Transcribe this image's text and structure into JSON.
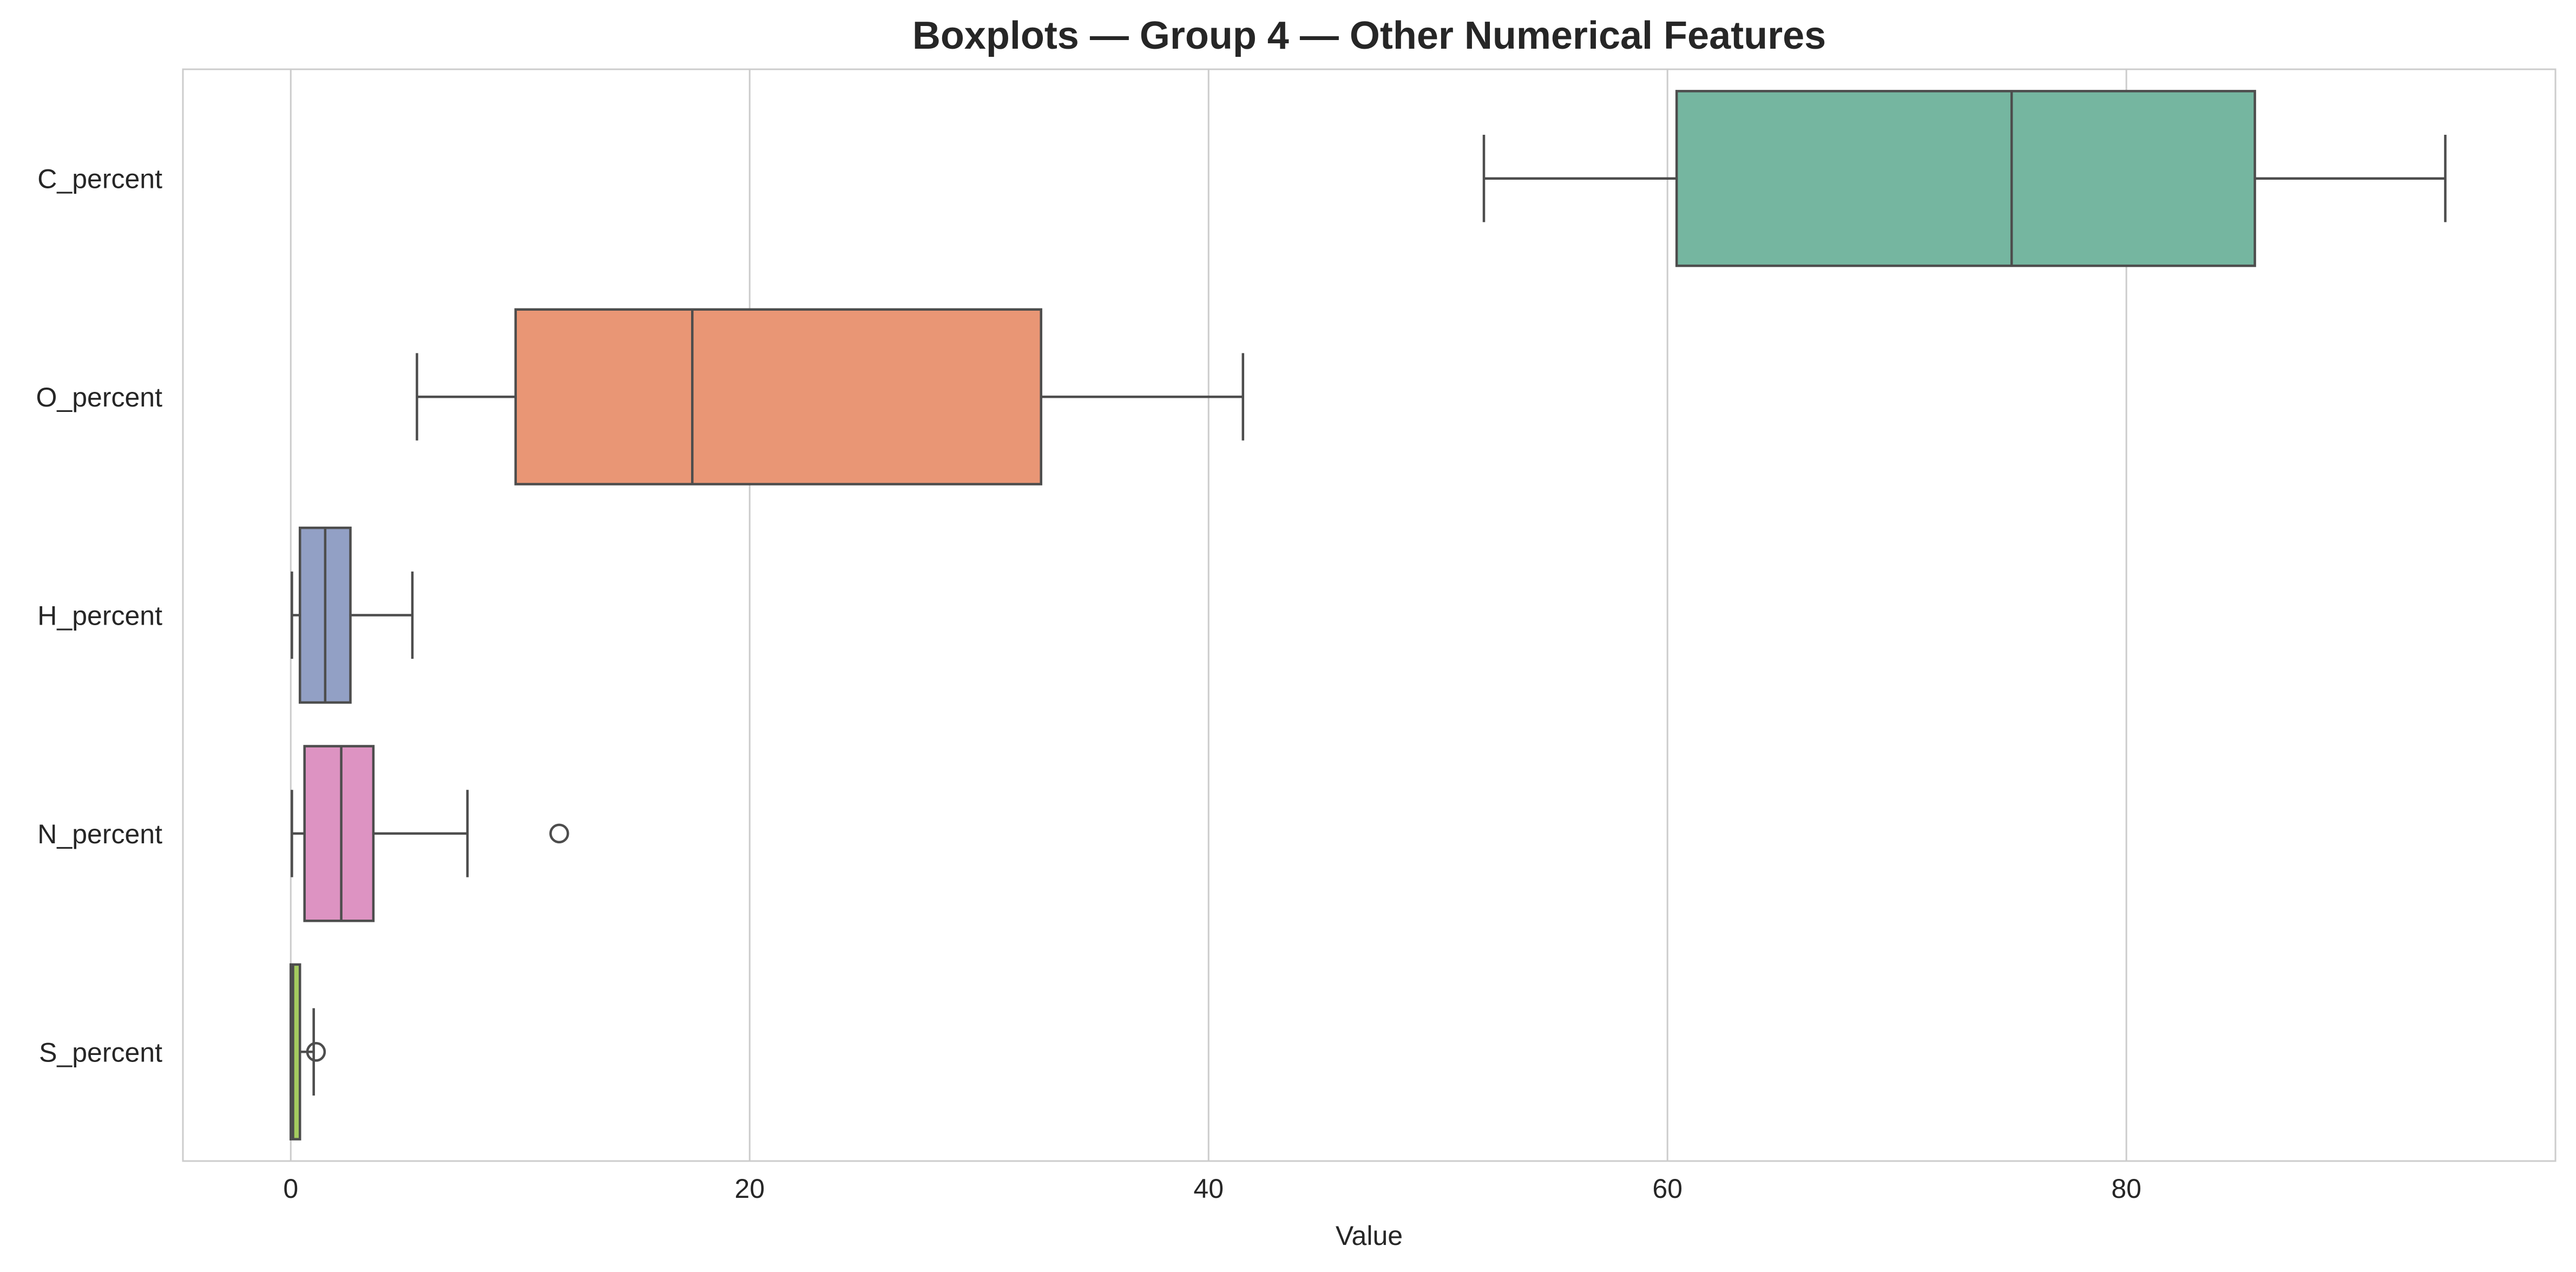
{
  "chart_data": {
    "type": "boxplot",
    "orientation": "horizontal",
    "title": "Boxplots — Group 4 — Other Numerical Features",
    "xlabel": "Value",
    "ylabel": "",
    "xlim": [
      -4.7,
      98.7
    ],
    "xticks": [
      0,
      20,
      40,
      60,
      80
    ],
    "grid": "vertical",
    "series": [
      {
        "category": "C_percent",
        "whisker_low": 52.0,
        "q1": 60.4,
        "median": 75.0,
        "q3": 85.6,
        "whisker_high": 93.9,
        "outliers": [],
        "color": "#75b6a0"
      },
      {
        "category": "O_percent",
        "whisker_low": 5.5,
        "q1": 9.8,
        "median": 17.5,
        "q3": 32.7,
        "whisker_high": 41.5,
        "outliers": [],
        "color": "#e99675"
      },
      {
        "category": "H_percent",
        "whisker_low": 0.05,
        "q1": 0.4,
        "median": 1.5,
        "q3": 2.6,
        "whisker_high": 5.3,
        "outliers": [],
        "color": "#92a0c5"
      },
      {
        "category": "N_percent",
        "whisker_low": 0.05,
        "q1": 0.6,
        "median": 2.2,
        "q3": 3.6,
        "whisker_high": 7.7,
        "outliers": [
          11.7
        ],
        "color": "#dd93c2"
      },
      {
        "category": "S_percent",
        "whisker_low": 0.0,
        "q1": 0.0,
        "median": 0.1,
        "q3": 0.4,
        "whisker_high": 1.0,
        "outliers": [
          1.1
        ],
        "color": "#a4cb5f"
      }
    ]
  }
}
